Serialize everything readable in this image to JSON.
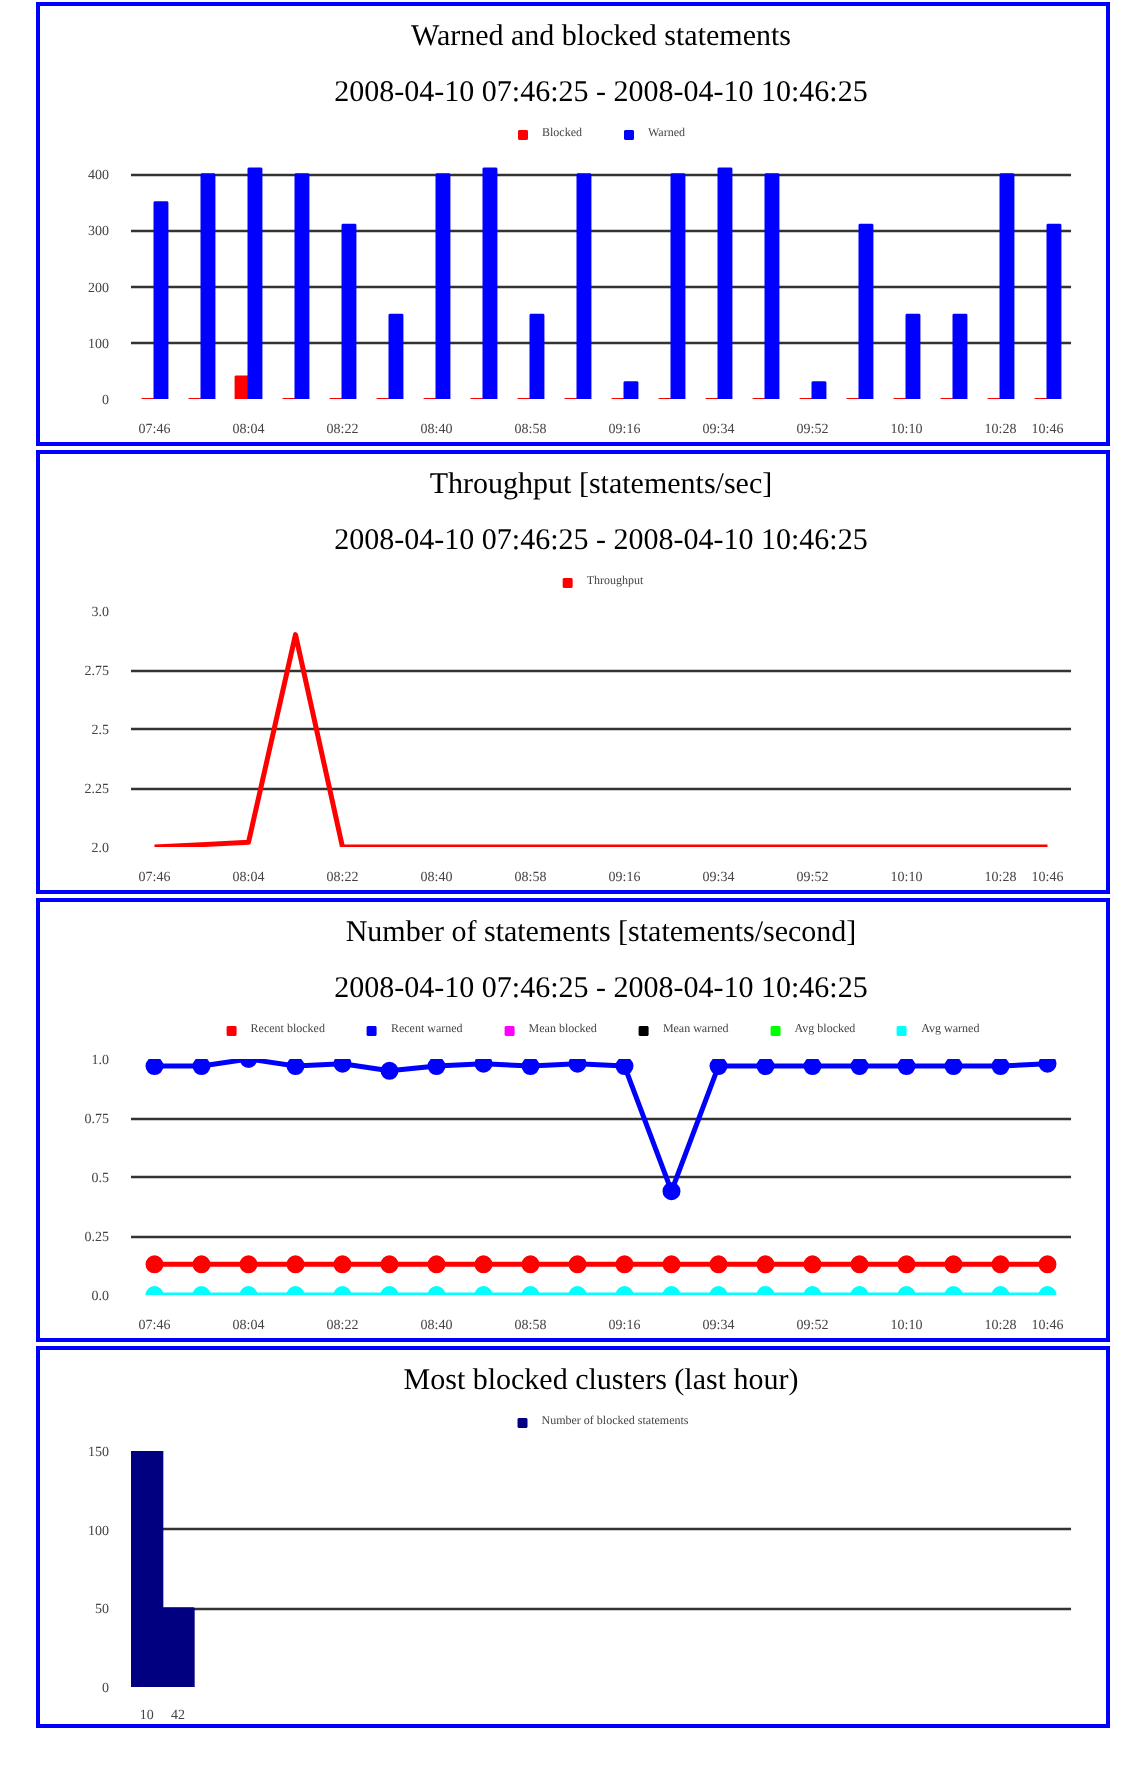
{
  "chart_data": [
    {
      "type": "bar",
      "title": "Warned and blocked statements",
      "subtitle": "2008-04-10 07:46:25 - 2008-04-10 10:46:25",
      "categories": [
        "07:46",
        null,
        "08:04",
        null,
        "08:22",
        null,
        "08:40",
        null,
        "08:58",
        null,
        "09:16",
        null,
        "09:34",
        null,
        "09:52",
        null,
        "10:10",
        null,
        "10:28",
        "10:46"
      ],
      "series": [
        {
          "name": "Blocked",
          "color": "#ff0000",
          "values": [
            0,
            0,
            40,
            0,
            0,
            0,
            0,
            0,
            0,
            0,
            0,
            0,
            0,
            0,
            0,
            0,
            0,
            0,
            0,
            0
          ]
        },
        {
          "name": "Warned",
          "color": "#0000ff",
          "values": [
            350,
            400,
            410,
            400,
            310,
            150,
            400,
            410,
            150,
            400,
            30,
            400,
            410,
            400,
            30,
            310,
            150,
            150,
            400,
            310
          ]
        }
      ],
      "ylim": [
        0,
        420
      ],
      "yticks": [
        0,
        100,
        200,
        300,
        400
      ],
      "grid": "y",
      "legend": "top"
    },
    {
      "type": "line",
      "title": "Throughput [statements/sec]",
      "subtitle": "2008-04-10 07:46:25 - 2008-04-10 10:46:25",
      "categories": [
        "07:46",
        null,
        "08:04",
        null,
        "08:22",
        null,
        "08:40",
        null,
        "08:58",
        null,
        "09:16",
        null,
        "09:34",
        null,
        "09:52",
        null,
        "10:10",
        null,
        "10:28",
        "10:46"
      ],
      "series": [
        {
          "name": "Throughput",
          "color": "#ff0000",
          "values": [
            2.0,
            2.01,
            2.02,
            2.9,
            2.0,
            2.0,
            2.0,
            2.0,
            2.0,
            2.0,
            2.0,
            2.0,
            2.0,
            2.0,
            2.0,
            2.0,
            2.0,
            2.0,
            2.0,
            2.0
          ]
        }
      ],
      "ylim": [
        2.0,
        3.0
      ],
      "yticks": [
        {
          "value": 2.0,
          "label": "2.0"
        },
        2.25,
        2.5,
        2.75,
        {
          "value": 3.0,
          "label": "3.0"
        }
      ],
      "grid": "y",
      "legend": "top"
    },
    {
      "type": "line",
      "title": "Number of statements [statements/second]",
      "subtitle": "2008-04-10 07:46:25 - 2008-04-10 10:46:25",
      "categories": [
        "07:46",
        null,
        "08:04",
        null,
        "08:22",
        null,
        "08:40",
        null,
        "08:58",
        null,
        "09:16",
        null,
        "09:34",
        null,
        "09:52",
        null,
        "10:10",
        null,
        "10:28",
        "10:46"
      ],
      "series": [
        {
          "name": "Recent blocked",
          "color": "#ff0000",
          "values": [
            0.13,
            0.13,
            0.13,
            0.13,
            0.13,
            0.13,
            0.13,
            0.13,
            0.13,
            0.13,
            0.13,
            0.13,
            0.13,
            0.13,
            0.13,
            0.13,
            0.13,
            0.13,
            0.13,
            0.13
          ]
        },
        {
          "name": "Recent warned",
          "color": "#0000ff",
          "values": [
            0.97,
            0.97,
            1.0,
            0.97,
            0.98,
            0.95,
            0.97,
            0.98,
            0.97,
            0.98,
            0.97,
            0.44,
            0.97,
            0.97,
            0.97,
            0.97,
            0.97,
            0.97,
            0.97,
            0.98
          ]
        },
        {
          "name": "Mean blocked",
          "color": "#ff00ff",
          "values": [
            null,
            null,
            null,
            null,
            null,
            null,
            null,
            null,
            null,
            null,
            null,
            null,
            null,
            null,
            null,
            null,
            null,
            null,
            null,
            null
          ]
        },
        {
          "name": "Mean warned",
          "color": "#000000",
          "values": [
            null,
            null,
            null,
            null,
            null,
            null,
            null,
            null,
            null,
            null,
            null,
            null,
            null,
            null,
            null,
            null,
            null,
            null,
            null,
            null
          ]
        },
        {
          "name": "Avg blocked",
          "color": "#00ff00",
          "values": [
            null,
            null,
            null,
            null,
            null,
            null,
            null,
            null,
            null,
            null,
            null,
            null,
            null,
            null,
            null,
            null,
            null,
            null,
            null,
            null
          ]
        },
        {
          "name": "Avg warned",
          "color": "#00ffff",
          "values": [
            0,
            0,
            0,
            0,
            0,
            0,
            0,
            0,
            0,
            0,
            0,
            0,
            0,
            0,
            0,
            0,
            0,
            0,
            0,
            0
          ]
        }
      ],
      "ylim": [
        0.0,
        1.0
      ],
      "yticks": [
        {
          "value": 0.0,
          "label": "0.0"
        },
        0.25,
        0.5,
        0.75,
        {
          "value": 1.0,
          "label": "1.0"
        }
      ],
      "grid": "y",
      "legend": "top",
      "marker": "circle"
    },
    {
      "type": "bar",
      "title": "Most blocked clusters (last hour)",
      "categories": [
        "10",
        "42",
        null,
        null,
        null,
        null,
        null,
        null,
        null,
        null,
        null,
        null,
        null,
        null,
        null,
        null,
        null,
        null,
        null,
        null,
        null,
        null,
        null,
        null,
        null,
        null,
        null,
        null,
        null,
        null
      ],
      "series": [
        {
          "name": "Number of blocked statements",
          "color": "#000080",
          "values": [
            150,
            50,
            null,
            null,
            null,
            null,
            null,
            null,
            null,
            null,
            null,
            null,
            null,
            null,
            null,
            null,
            null,
            null,
            null,
            null,
            null,
            null,
            null,
            null,
            null,
            null,
            null,
            null,
            null,
            null
          ]
        }
      ],
      "ylim": [
        0,
        150
      ],
      "yticks": [
        0,
        50,
        100,
        150
      ],
      "grid": "y",
      "legend": "top"
    }
  ]
}
